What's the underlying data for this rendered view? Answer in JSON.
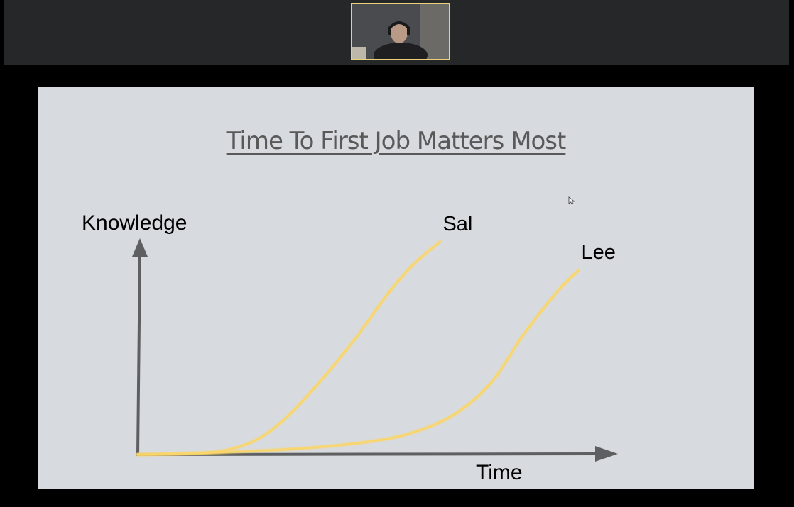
{
  "meeting": {
    "participant_video": "participant-video"
  },
  "slide": {
    "title": "Time To First Job Matters Most"
  },
  "chart_data": {
    "type": "line",
    "title": "Time To First Job Matters Most",
    "xlabel": "Time",
    "ylabel": "Knowledge",
    "grid": false,
    "series": [
      {
        "name": "Sal",
        "color": "#f9d56a",
        "points": [
          [
            0,
            0
          ],
          [
            10,
            0.2
          ],
          [
            20,
            1
          ],
          [
            28,
            4
          ],
          [
            35,
            10
          ],
          [
            43,
            20
          ],
          [
            52,
            33
          ],
          [
            60,
            46
          ],
          [
            66,
            54
          ],
          [
            72,
            60
          ]
        ]
      },
      {
        "name": "Lee",
        "color": "#f9d56a",
        "points": [
          [
            0,
            0
          ],
          [
            20,
            0.6
          ],
          [
            40,
            1.8
          ],
          [
            55,
            3.6
          ],
          [
            65,
            6
          ],
          [
            75,
            11
          ],
          [
            84,
            20
          ],
          [
            92,
            34
          ],
          [
            100,
            46
          ],
          [
            105,
            52
          ]
        ]
      }
    ],
    "xlim": [
      0,
      110
    ],
    "ylim": [
      0,
      60
    ]
  },
  "colors": {
    "slide_bg": "#d7dbdf",
    "axis": "#5e5f61",
    "line": "#f9d56a",
    "frame_bg": "#262728"
  }
}
